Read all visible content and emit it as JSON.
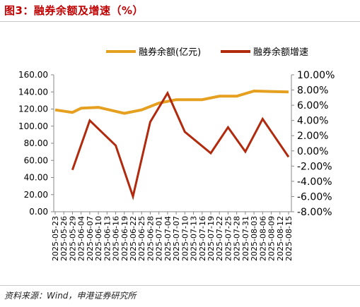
{
  "figure_title": "图3：融券余额及增速（%）",
  "source_note": "资料来源：Wind，申港证券研究所",
  "colors": {
    "balance": "#e6a020",
    "growth": "#b22a0e",
    "title": "#c00000"
  },
  "chart_data": {
    "type": "line",
    "title": "",
    "x": [
      "2025-05-23",
      "2025-05-26",
      "2025-05-29",
      "2025-06-04",
      "2025-06-07",
      "2025-06-10",
      "2025-06-13",
      "2025-06-16",
      "2025-06-19",
      "2025-06-22",
      "2025-06-25",
      "2025-06-28",
      "2025-07-01",
      "2025-07-04",
      "2025-07-07",
      "2025-07-10",
      "2025-07-13",
      "2025-07-16",
      "2025-07-19",
      "2025-07-22",
      "2025-07-25",
      "2025-07-28",
      "2025-07-31",
      "2025-08-03",
      "2025-08-06",
      "2025-08-09",
      "2025-08-12",
      "2025-08-15"
    ],
    "left_axis": {
      "ylim": [
        0,
        160
      ],
      "ticks": [
        "0.00",
        "20.00",
        "40.00",
        "60.00",
        "80.00",
        "100.00",
        "120.00",
        "140.00",
        "160.00"
      ]
    },
    "right_axis": {
      "ylim": [
        -8,
        10
      ],
      "ticks": [
        "-8.00%",
        "-6.00%",
        "-4.00%",
        "-2.00%",
        "0.00%",
        "2.00%",
        "4.00%",
        "6.00%",
        "8.00%",
        "10.00%"
      ]
    },
    "legend_position": "top",
    "grid": false,
    "series": [
      {
        "name": "融券余额(亿元)",
        "axis": "left",
        "line_width": "thick",
        "points": [
          [
            "2025-05-23",
            119
          ],
          [
            "2025-05-29",
            116
          ],
          [
            "2025-06-04",
            121
          ],
          [
            "2025-06-10",
            122
          ],
          [
            "2025-06-19",
            115
          ],
          [
            "2025-06-25",
            119
          ],
          [
            "2025-07-01",
            127
          ],
          [
            "2025-07-07",
            131
          ],
          [
            "2025-07-16",
            131
          ],
          [
            "2025-07-22",
            135
          ],
          [
            "2025-07-28",
            135
          ],
          [
            "2025-08-03",
            141
          ],
          [
            "2025-08-15",
            140
          ]
        ]
      },
      {
        "name": "融券余额增速",
        "axis": "right",
        "line_width": "thin",
        "points": [
          [
            "2025-05-29",
            -2.5
          ],
          [
            "2025-06-07",
            4.0
          ],
          [
            "2025-06-16",
            0.7
          ],
          [
            "2025-06-22",
            -6.0
          ],
          [
            "2025-06-28",
            3.8
          ],
          [
            "2025-07-04",
            7.6
          ],
          [
            "2025-07-10",
            2.5
          ],
          [
            "2025-07-19",
            -0.3
          ],
          [
            "2025-07-25",
            3.1
          ],
          [
            "2025-07-31",
            -0.1
          ],
          [
            "2025-08-06",
            4.2
          ],
          [
            "2025-08-15",
            -0.8
          ]
        ]
      }
    ]
  }
}
